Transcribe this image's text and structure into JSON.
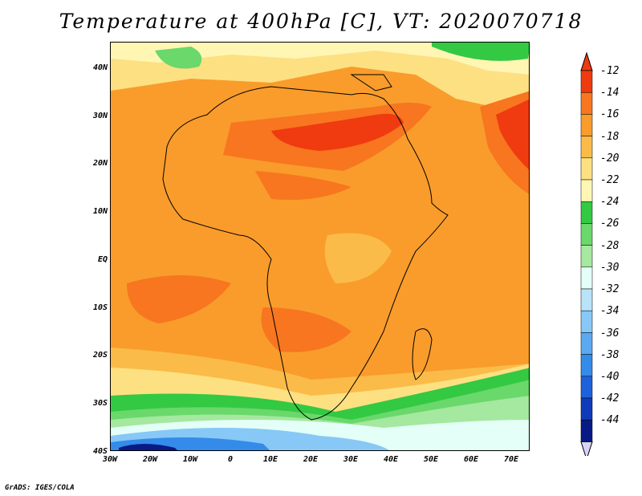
{
  "title": "Temperature at 400hPa [C], VT: 2020070718",
  "footer": "GrADS: IGES/COLA",
  "map": {
    "lat_ticks": [
      "40N",
      "30N",
      "20N",
      "10N",
      "EQ",
      "10S",
      "20S",
      "30S",
      "40S"
    ],
    "lon_ticks": [
      "30W",
      "20W",
      "10W",
      "0",
      "10E",
      "20E",
      "30E",
      "40E",
      "50E",
      "60E",
      "70E"
    ],
    "lat_range": [
      -40,
      45
    ],
    "lon_range": [
      -30,
      75
    ]
  },
  "colorbar": {
    "labels": [
      "-12",
      "-14",
      "-16",
      "-18",
      "-20",
      "-22",
      "-24",
      "-26",
      "-28",
      "-30",
      "-32",
      "-34",
      "-36",
      "-38",
      "-40",
      "-42",
      "-44"
    ],
    "colors": [
      "#f03a10",
      "#f7761f",
      "#f99c2b",
      "#fbbb48",
      "#fde082",
      "#fff6b4",
      "#33c942",
      "#6ad86b",
      "#a5e89f",
      "#e4fff7",
      "#b8e3f9",
      "#87c8f6",
      "#5ba9f0",
      "#348be9",
      "#1d62da",
      "#0f3bbb",
      "#081a86"
    ]
  }
}
